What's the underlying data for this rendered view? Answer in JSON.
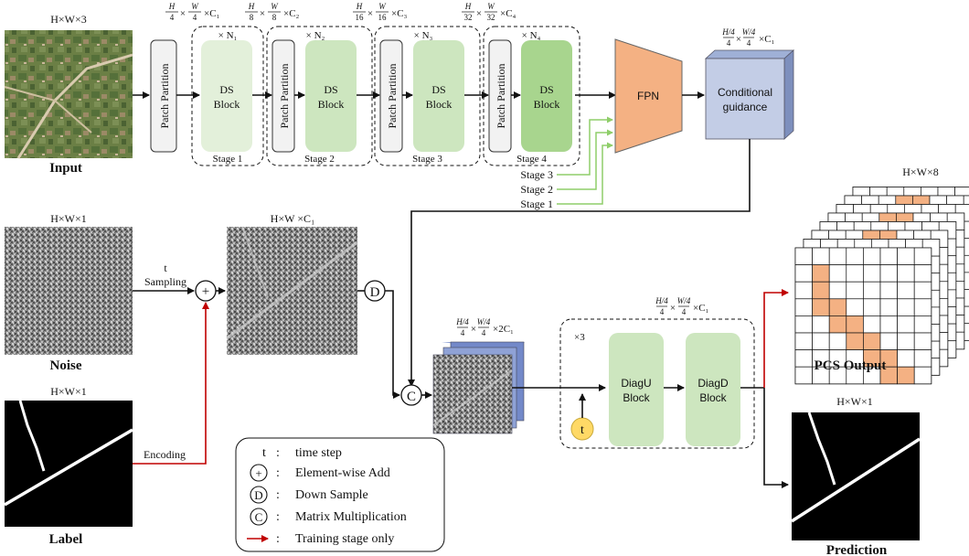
{
  "colors": {
    "stage_light": "#e3f0da",
    "stage_mid": "#cde6bf",
    "stage_dark": "#a8d58e",
    "fpn": "#f4b183",
    "cond_front": "#c3cde6",
    "cond_top": "#9fb0d6",
    "pixel_fill": "#f4b183",
    "train_arrow": "#c00000",
    "green_line": "#8fce6a",
    "time_circle": "#ffd966"
  },
  "input": {
    "dims": "H×W×3",
    "label": "Input"
  },
  "backbone": {
    "patch_partition": "Patch Partition",
    "ds_block_line1": "DS",
    "ds_block_line2": "Block",
    "stages": [
      {
        "label": "Stage 1",
        "repeat": "× N₁",
        "dims_a": "H/4",
        "dims_b": "W/4",
        "dims_c": "×C₁"
      },
      {
        "label": "Stage 2",
        "repeat": "× N₂",
        "dims_a": "H/8",
        "dims_b": "W/8",
        "dims_c": "×C₂"
      },
      {
        "label": "Stage 3",
        "repeat": "× N₃",
        "dims_a": "H/16",
        "dims_b": "W/16",
        "dims_c": "×C₃"
      },
      {
        "label": "Stage 4",
        "repeat": "× N₄",
        "dims_a": "H/32",
        "dims_b": "W/32",
        "dims_c": "×C₄"
      }
    ]
  },
  "fpn": {
    "label": "FPN",
    "inputs": [
      "Stage 3",
      "Stage 2",
      "Stage 1"
    ]
  },
  "conditional": {
    "line1": "Conditional",
    "line2": "guidance",
    "dims_a": "H/4",
    "dims_b": "W/4",
    "dims_c": "×C₁"
  },
  "noise": {
    "dims": "H×W×1",
    "label": "Noise",
    "sampling_t": "t",
    "sampling": "Sampling"
  },
  "noisy_map": {
    "dims": "H×W ×C₁"
  },
  "label": {
    "dims": "H×W×1",
    "label": "Label",
    "encoding": "Encoding"
  },
  "fused": {
    "dims_a": "H/4",
    "dims_b": "W/4",
    "dims_c": "×2C₁"
  },
  "decoder": {
    "repeat": "×3",
    "dims_a": "H/4",
    "dims_b": "W/4",
    "dims_c": "×C₁",
    "diagu_line1": "DiagU",
    "diagu_line2": "Block",
    "diagd_line1": "DiagD",
    "diagd_line2": "Block",
    "time": "t"
  },
  "pcs": {
    "dims": "H×W×8",
    "label": "PCS Output"
  },
  "prediction": {
    "dims": "H×W×1",
    "label": "Prediction"
  },
  "symbols": {
    "add": "+",
    "down": "D",
    "matmul": "C"
  },
  "legend": [
    {
      "symbol": "t",
      "text": "time step"
    },
    {
      "symbol": "+",
      "text": "Element-wise Add"
    },
    {
      "symbol": "D",
      "text": "Down Sample"
    },
    {
      "symbol": "C",
      "text": "Matrix Multiplication"
    },
    {
      "symbol": "",
      "text": "Training stage only"
    }
  ],
  "pcs_grid": {
    "rows": 8,
    "cols": 8,
    "filled": [
      [
        1,
        1
      ],
      [
        2,
        1
      ],
      [
        3,
        1
      ],
      [
        3,
        2
      ],
      [
        4,
        2
      ],
      [
        4,
        3
      ],
      [
        5,
        3
      ],
      [
        5,
        4
      ],
      [
        6,
        4
      ],
      [
        6,
        5
      ],
      [
        7,
        5
      ],
      [
        7,
        6
      ]
    ]
  }
}
